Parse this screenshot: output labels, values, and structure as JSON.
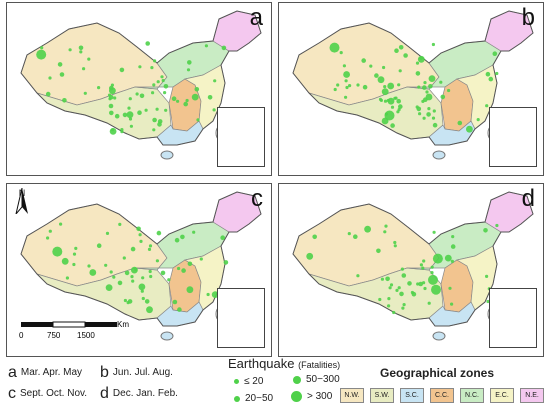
{
  "panels": [
    {
      "letter": "a"
    },
    {
      "letter": "b"
    },
    {
      "letter": "c"
    },
    {
      "letter": "d"
    }
  ],
  "north_label": "N",
  "scale": {
    "unit": "Km",
    "ticks": [
      "0",
      "750",
      "1500"
    ]
  },
  "seasons": [
    {
      "letter": "a",
      "months": "Mar.  Apr.  May"
    },
    {
      "letter": "b",
      "months": "Jun.  Jul.  Aug."
    },
    {
      "letter": "c",
      "months": "Sept.  Oct.  Nov."
    },
    {
      "letter": "d",
      "months": "Dec.  Jan.  Feb."
    }
  ],
  "earthquake_legend": {
    "title": "Earthquake",
    "subtitle": "(Fatalities)",
    "classes": [
      {
        "label": "≤ 20"
      },
      {
        "label": "20−50"
      },
      {
        "label": "50−300"
      },
      {
        "label": "> 300"
      }
    ],
    "color": "#4fd14a"
  },
  "zones_legend": {
    "title": "Geographical zones",
    "zones": [
      {
        "label": "N.W.",
        "color": "#f6e7c1"
      },
      {
        "label": "S.W.",
        "color": "#e8ecc2"
      },
      {
        "label": "S.C.",
        "color": "#c8e4f3"
      },
      {
        "label": "C.C.",
        "color": "#f2c48f"
      },
      {
        "label": "N.C.",
        "color": "#c9ecc4"
      },
      {
        "label": "E.C.",
        "color": "#f5f3c6"
      },
      {
        "label": "N.E.",
        "color": "#f4c8ef"
      }
    ]
  }
}
